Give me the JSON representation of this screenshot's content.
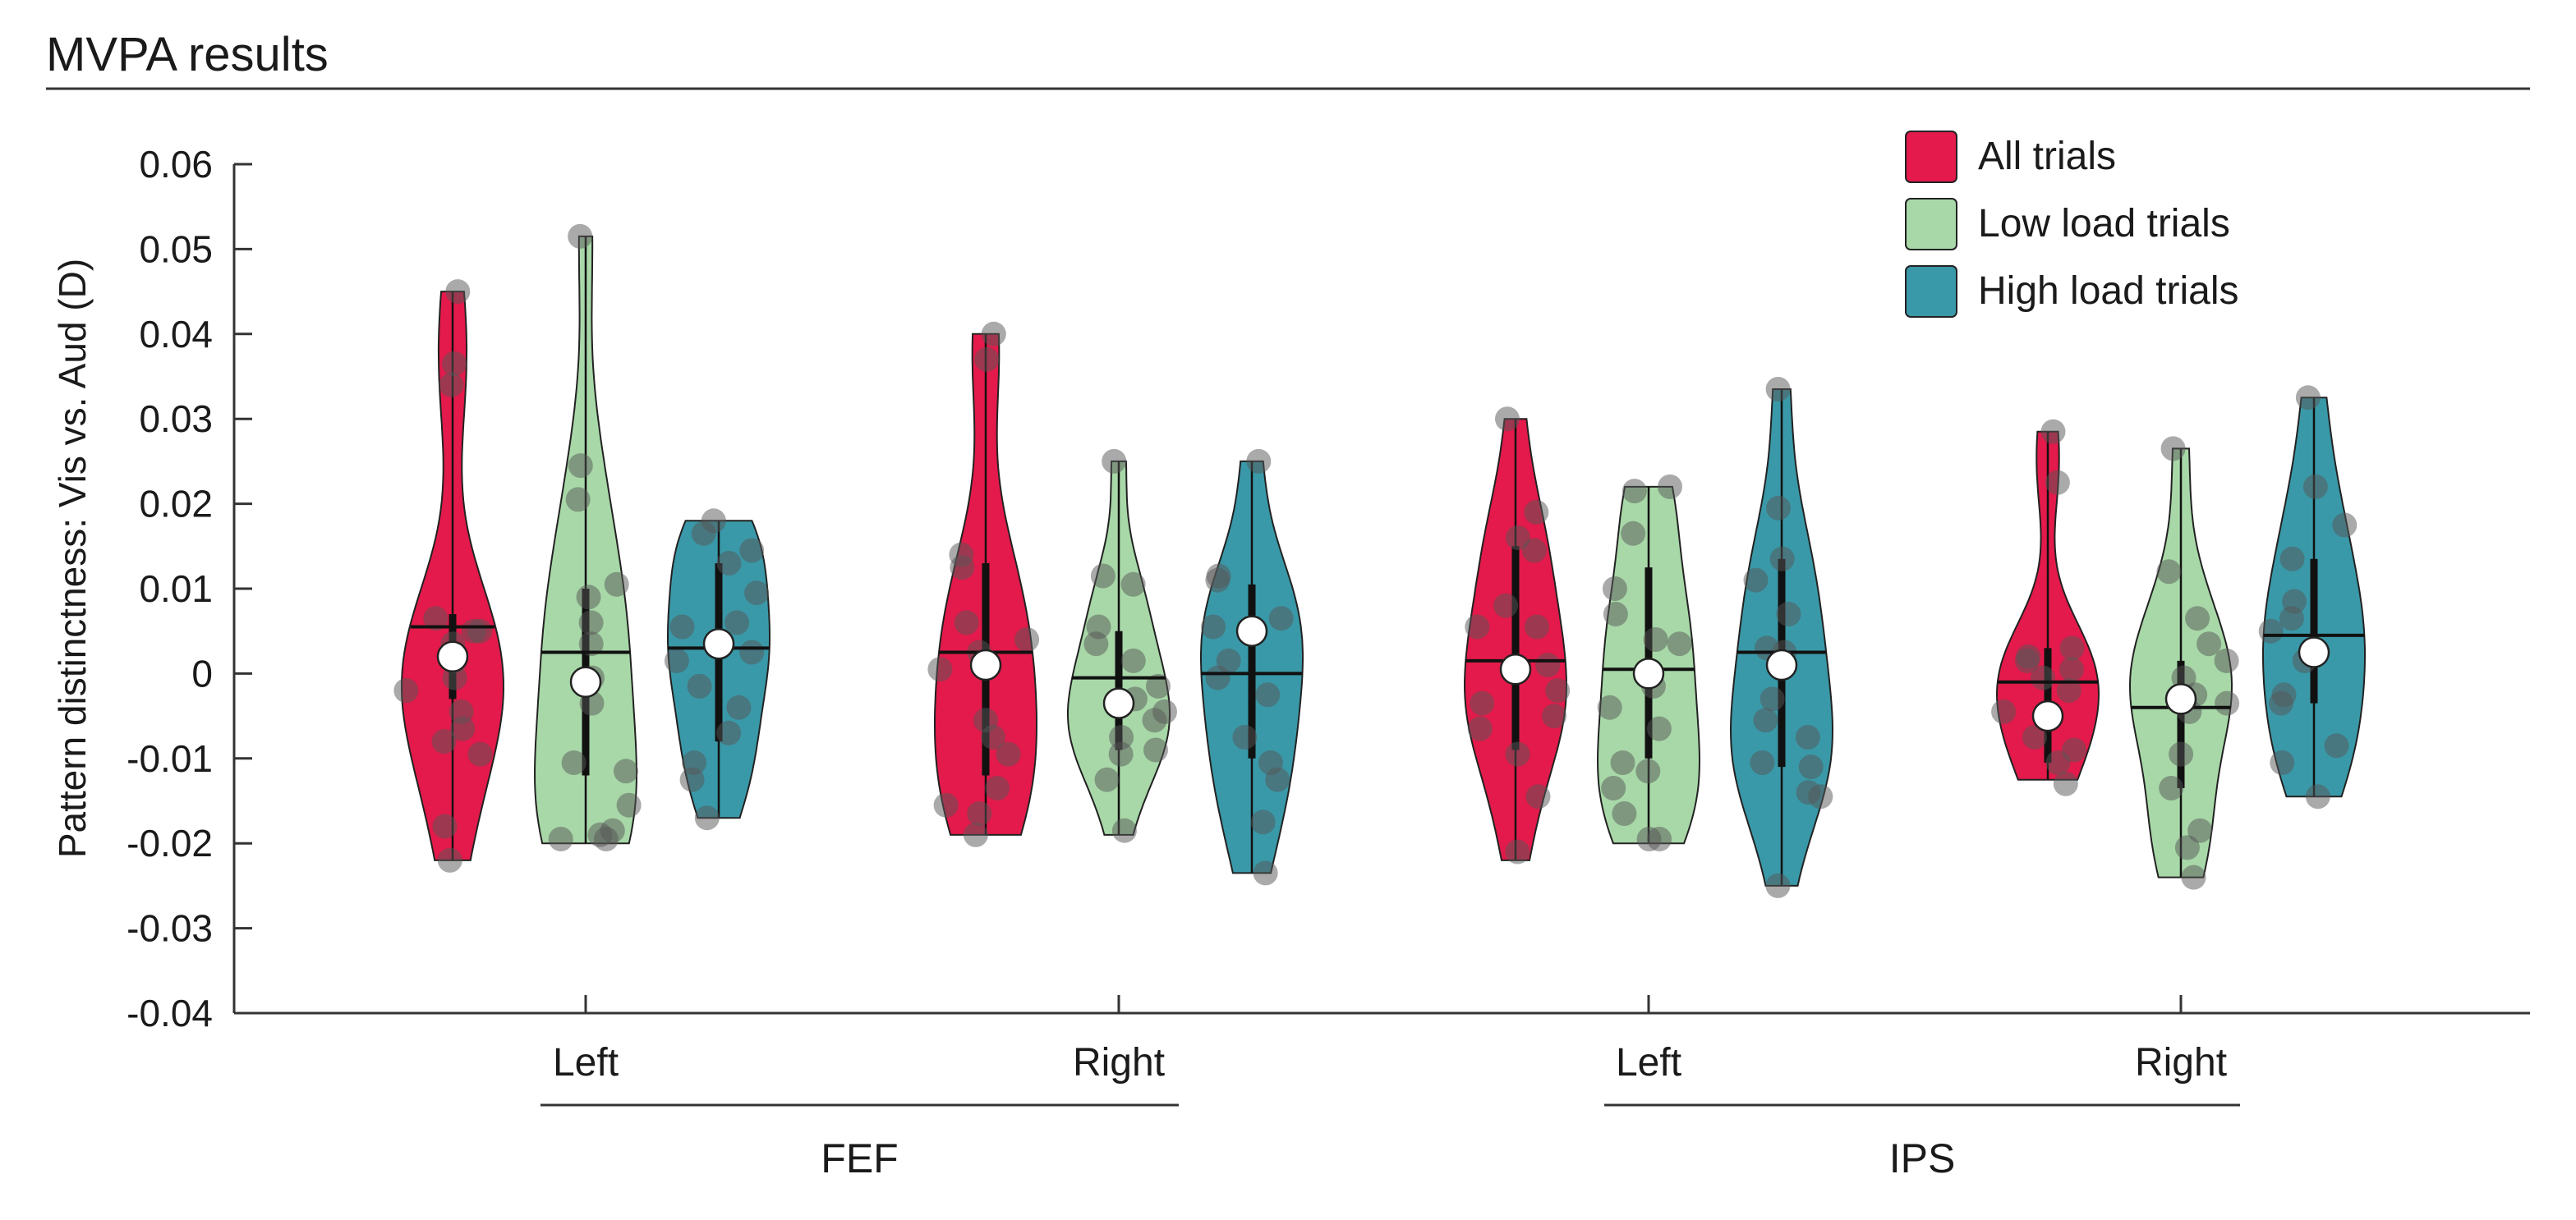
{
  "figure": {
    "title": "MVPA results"
  },
  "chart_data": {
    "type": "violin",
    "ylabel": "Pattern distinctness: Vis vs. Aud (D)",
    "ylim": [
      -0.04,
      0.06
    ],
    "yticks": [
      "0.06",
      "0.05",
      "0.04",
      "0.03",
      "0.02",
      "0.01",
      "0",
      "-0.01",
      "-0.02",
      "-0.03",
      "-0.04"
    ],
    "grid": false,
    "legend_position": "top-right",
    "region_groups": [
      {
        "label": "FEF",
        "hemispheres": [
          "Left",
          "Right"
        ]
      },
      {
        "label": "IPS",
        "hemispheres": [
          "Left",
          "Right"
        ]
      }
    ],
    "series": [
      {
        "name": "All trials",
        "color": "#e31a4b"
      },
      {
        "name": "Low load trials",
        "color": "#a8d8a8"
      },
      {
        "name": "High load trials",
        "color": "#3a99a8"
      }
    ],
    "violins": [
      {
        "region": "FEF",
        "hemisphere": "Left",
        "series": "All trials",
        "min": -0.022,
        "max": 0.045,
        "median": 0.0055,
        "mean": 0.002,
        "q1": -0.003,
        "q3": 0.007,
        "points": [
          0.045,
          0.0365,
          0.034,
          0.0065,
          0.005,
          0.005,
          0.0035,
          0.0015,
          -0.0005,
          -0.002,
          -0.0045,
          -0.0065,
          -0.008,
          -0.0095,
          -0.018,
          -0.022
        ]
      },
      {
        "region": "FEF",
        "hemisphere": "Left",
        "series": "Low load trials",
        "min": -0.02,
        "max": 0.0515,
        "median": 0.0025,
        "mean": -0.001,
        "q1": -0.012,
        "q3": 0.01,
        "points": [
          0.0515,
          0.0245,
          0.0205,
          0.0105,
          0.009,
          0.006,
          0.0035,
          -0.0005,
          -0.0035,
          -0.0105,
          -0.0115,
          -0.0185,
          -0.0195,
          -0.0195,
          -0.019,
          -0.0155
        ]
      },
      {
        "region": "FEF",
        "hemisphere": "Left",
        "series": "High load trials",
        "min": -0.017,
        "max": 0.018,
        "median": 0.003,
        "mean": 0.0035,
        "q1": -0.008,
        "q3": 0.013,
        "points": [
          0.018,
          0.0165,
          0.0145,
          0.013,
          0.0095,
          0.006,
          0.0055,
          0.0025,
          0.0015,
          -0.0015,
          -0.004,
          -0.007,
          -0.0105,
          -0.0125,
          -0.017
        ]
      },
      {
        "region": "FEF",
        "hemisphere": "Right",
        "series": "All trials",
        "min": -0.019,
        "max": 0.04,
        "median": 0.0025,
        "mean": 0.001,
        "q1": -0.012,
        "q3": 0.013,
        "points": [
          0.04,
          0.037,
          0.014,
          0.0125,
          0.006,
          0.004,
          0.0025,
          0.0005,
          -0.0055,
          -0.0075,
          -0.0095,
          -0.0135,
          -0.0155,
          -0.0165,
          -0.019
        ]
      },
      {
        "region": "FEF",
        "hemisphere": "Right",
        "series": "Low load trials",
        "min": -0.019,
        "max": 0.025,
        "median": -0.0005,
        "mean": -0.0035,
        "q1": -0.009,
        "q3": 0.005,
        "points": [
          0.025,
          0.0115,
          0.0105,
          0.0055,
          0.0035,
          0.0015,
          -0.0015,
          -0.003,
          -0.0045,
          -0.0055,
          -0.0075,
          -0.009,
          -0.0095,
          -0.0125,
          -0.0185
        ]
      },
      {
        "region": "FEF",
        "hemisphere": "Right",
        "series": "High load trials",
        "min": -0.0235,
        "max": 0.025,
        "median": 0.0,
        "mean": 0.005,
        "q1": -0.01,
        "q3": 0.0105,
        "points": [
          0.025,
          0.0115,
          0.011,
          0.0065,
          0.0055,
          0.0015,
          -0.0005,
          -0.0025,
          -0.0075,
          -0.0105,
          -0.0125,
          -0.0175,
          -0.0235
        ]
      },
      {
        "region": "IPS",
        "hemisphere": "Left",
        "series": "All trials",
        "min": -0.022,
        "max": 0.03,
        "median": 0.0015,
        "mean": 0.0005,
        "q1": -0.009,
        "q3": 0.015,
        "points": [
          0.03,
          0.019,
          0.016,
          0.0145,
          0.008,
          0.0055,
          0.0055,
          0.001,
          -0.002,
          -0.0035,
          -0.005,
          -0.0065,
          -0.0095,
          -0.0145,
          -0.021
        ]
      },
      {
        "region": "IPS",
        "hemisphere": "Left",
        "series": "Low load trials",
        "min": -0.02,
        "max": 0.022,
        "median": 0.0005,
        "mean": 0.0,
        "q1": -0.01,
        "q3": 0.0125,
        "points": [
          0.022,
          0.0215,
          0.0165,
          0.01,
          0.007,
          0.004,
          0.0035,
          -0.0015,
          -0.004,
          -0.0065,
          -0.0105,
          -0.0115,
          -0.0135,
          -0.0165,
          -0.0195,
          -0.0195
        ]
      },
      {
        "region": "IPS",
        "hemisphere": "Left",
        "series": "High load trials",
        "min": -0.025,
        "max": 0.0335,
        "median": 0.0025,
        "mean": 0.001,
        "q1": -0.011,
        "q3": 0.0135,
        "points": [
          0.0335,
          0.0195,
          0.0135,
          0.011,
          0.007,
          0.003,
          0.0025,
          -0.003,
          -0.0055,
          -0.0075,
          -0.0105,
          -0.011,
          -0.014,
          -0.0145,
          -0.025
        ]
      },
      {
        "region": "IPS",
        "hemisphere": "Right",
        "series": "All trials",
        "min": -0.0125,
        "max": 0.0285,
        "median": -0.001,
        "mean": -0.005,
        "q1": -0.0105,
        "q3": 0.003,
        "points": [
          0.0285,
          0.0225,
          0.003,
          0.002,
          0.0015,
          0.0005,
          -0.0005,
          -0.002,
          -0.0045,
          -0.0075,
          -0.009,
          -0.0105,
          -0.013
        ]
      },
      {
        "region": "IPS",
        "hemisphere": "Right",
        "series": "Low load trials",
        "min": -0.024,
        "max": 0.0265,
        "median": -0.004,
        "mean": -0.003,
        "q1": -0.0135,
        "q3": 0.0015,
        "points": [
          0.0265,
          0.012,
          0.0065,
          0.0035,
          0.0015,
          -0.0005,
          -0.0025,
          -0.0035,
          -0.0045,
          -0.0095,
          -0.0135,
          -0.0185,
          -0.0205,
          -0.024
        ]
      },
      {
        "region": "IPS",
        "hemisphere": "Right",
        "series": "High load trials",
        "min": -0.0145,
        "max": 0.0325,
        "median": 0.0045,
        "mean": 0.0025,
        "q1": -0.0035,
        "q3": 0.0135,
        "points": [
          0.0325,
          0.022,
          0.0175,
          0.0135,
          0.0085,
          0.0065,
          0.005,
          0.0015,
          -0.0025,
          -0.0035,
          -0.0085,
          -0.0105,
          -0.0145
        ]
      }
    ]
  }
}
